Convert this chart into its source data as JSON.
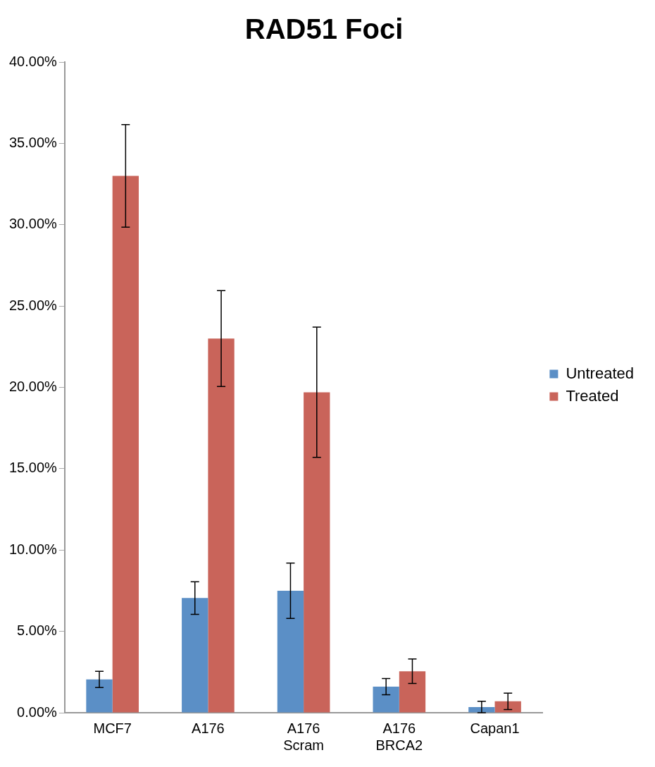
{
  "chart_data": {
    "type": "bar",
    "title": "RAD51 Foci",
    "categories": [
      "MCF7",
      "A176",
      "A176 Scram",
      "A176 BRCA2",
      "Capan1"
    ],
    "series": [
      {
        "name": "Untreated",
        "color": "#5b8fc6",
        "values": [
          2.05,
          7.05,
          7.5,
          1.6,
          0.35
        ],
        "errors": [
          0.5,
          1.0,
          1.7,
          0.5,
          0.35
        ]
      },
      {
        "name": "Treated",
        "color": "#c9645a",
        "values": [
          33.0,
          23.0,
          19.7,
          2.55,
          0.7
        ],
        "errors": [
          3.15,
          2.95,
          4.0,
          0.75,
          0.5
        ]
      }
    ],
    "ylim": [
      0,
      40
    ],
    "yticks": [
      {
        "value": 0,
        "label": "0.00%"
      },
      {
        "value": 5,
        "label": "5.00%"
      },
      {
        "value": 10,
        "label": "10.00%"
      },
      {
        "value": 15,
        "label": "15.00%"
      },
      {
        "value": 20,
        "label": "20.00%"
      },
      {
        "value": 25,
        "label": "25.00%"
      },
      {
        "value": 30,
        "label": "30.00%"
      },
      {
        "value": 35,
        "label": "35.00%"
      },
      {
        "value": 40,
        "label": "40.00%"
      }
    ],
    "grid": false,
    "legend": "right"
  }
}
